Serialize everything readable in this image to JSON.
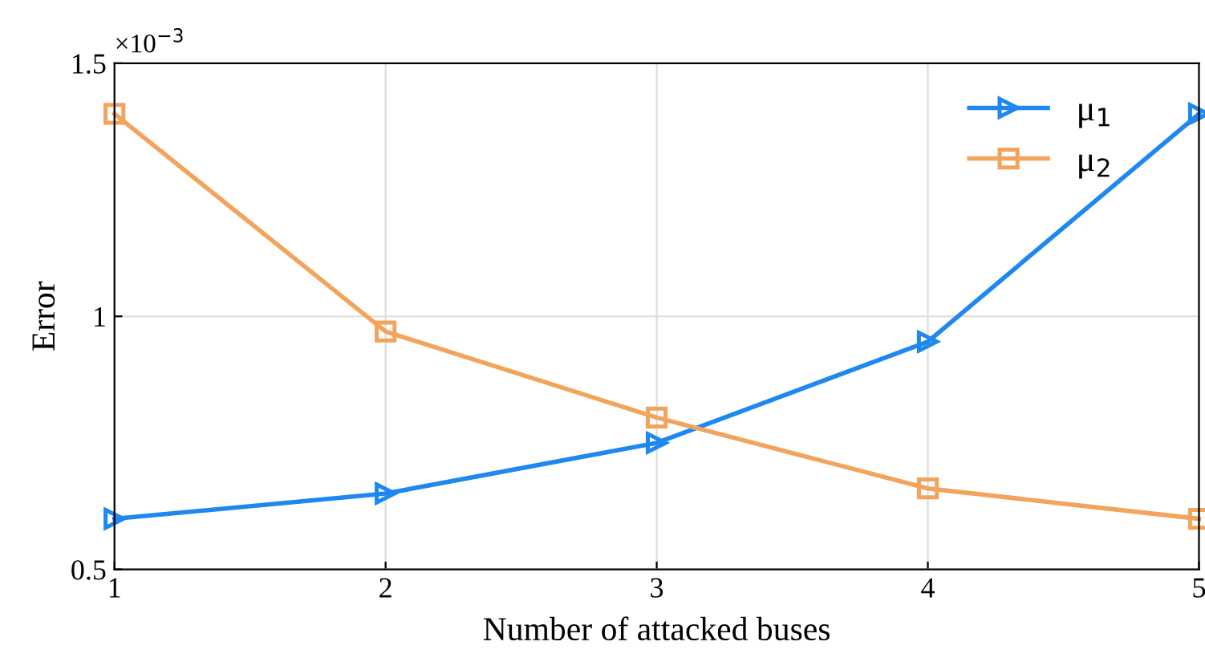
{
  "chart_data": {
    "type": "line",
    "xlabel": "Number of attacked buses",
    "ylabel": "Error",
    "x": [
      1,
      2,
      3,
      4,
      5
    ],
    "series": [
      {
        "name": "μ$_{1}$",
        "color": "#1e88f0",
        "marker": "triangle",
        "values": [
          0.6,
          0.65,
          0.75,
          0.95,
          1.4
        ]
      },
      {
        "name": "μ$_{2}$",
        "color": "#f2a45c",
        "marker": "square",
        "values": [
          1.4,
          0.97,
          0.8,
          0.66,
          0.6
        ]
      }
    ],
    "xlim": [
      1,
      5
    ],
    "xticks": [
      1,
      2,
      3,
      4,
      5
    ],
    "ylim": [
      0.5,
      1.5
    ],
    "yticks": [
      0.5,
      1,
      1.5
    ],
    "annotations": [
      "×10$^{−3}$"
    ],
    "grid": true,
    "legend": "top right",
    "line_style": "solid"
  }
}
